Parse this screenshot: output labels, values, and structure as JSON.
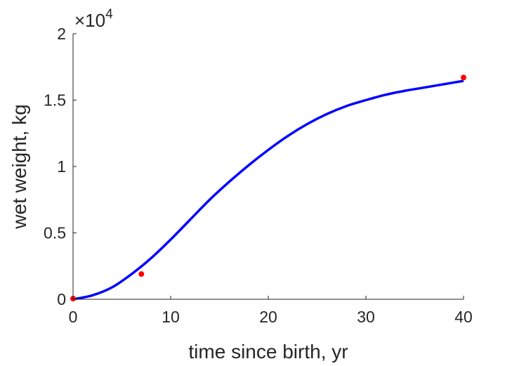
{
  "chart_data": {
    "type": "line",
    "xlabel": "time since birth, yr",
    "ylabel": "wet weight, kg",
    "xlim": [
      0,
      40
    ],
    "ylim": [
      0,
      20000
    ],
    "x_ticks": [
      0,
      10,
      20,
      30,
      40
    ],
    "y_ticks": [
      0,
      5000,
      10000,
      15000,
      20000
    ],
    "y_tick_labels": [
      "0",
      "0.5",
      "1",
      "1.5",
      "2"
    ],
    "y_exponent_prefix": "×10",
    "y_exponent": "4",
    "grid": false,
    "series": [
      {
        "style": "line",
        "color": "#0000ff",
        "x": [
          0,
          2,
          4,
          6,
          8,
          10,
          12,
          14,
          16,
          18,
          20,
          22,
          24,
          26,
          28,
          30,
          32,
          34,
          36,
          38,
          40
        ],
        "y": [
          0,
          300,
          900,
          1900,
          3100,
          4500,
          6000,
          7500,
          8850,
          10100,
          11250,
          12300,
          13200,
          13950,
          14550,
          15000,
          15400,
          15700,
          15950,
          16200,
          16450
        ]
      },
      {
        "style": "scatter",
        "color": "#ff0000",
        "x": [
          0,
          7,
          40
        ],
        "y": [
          50,
          1900,
          16700
        ]
      }
    ]
  }
}
